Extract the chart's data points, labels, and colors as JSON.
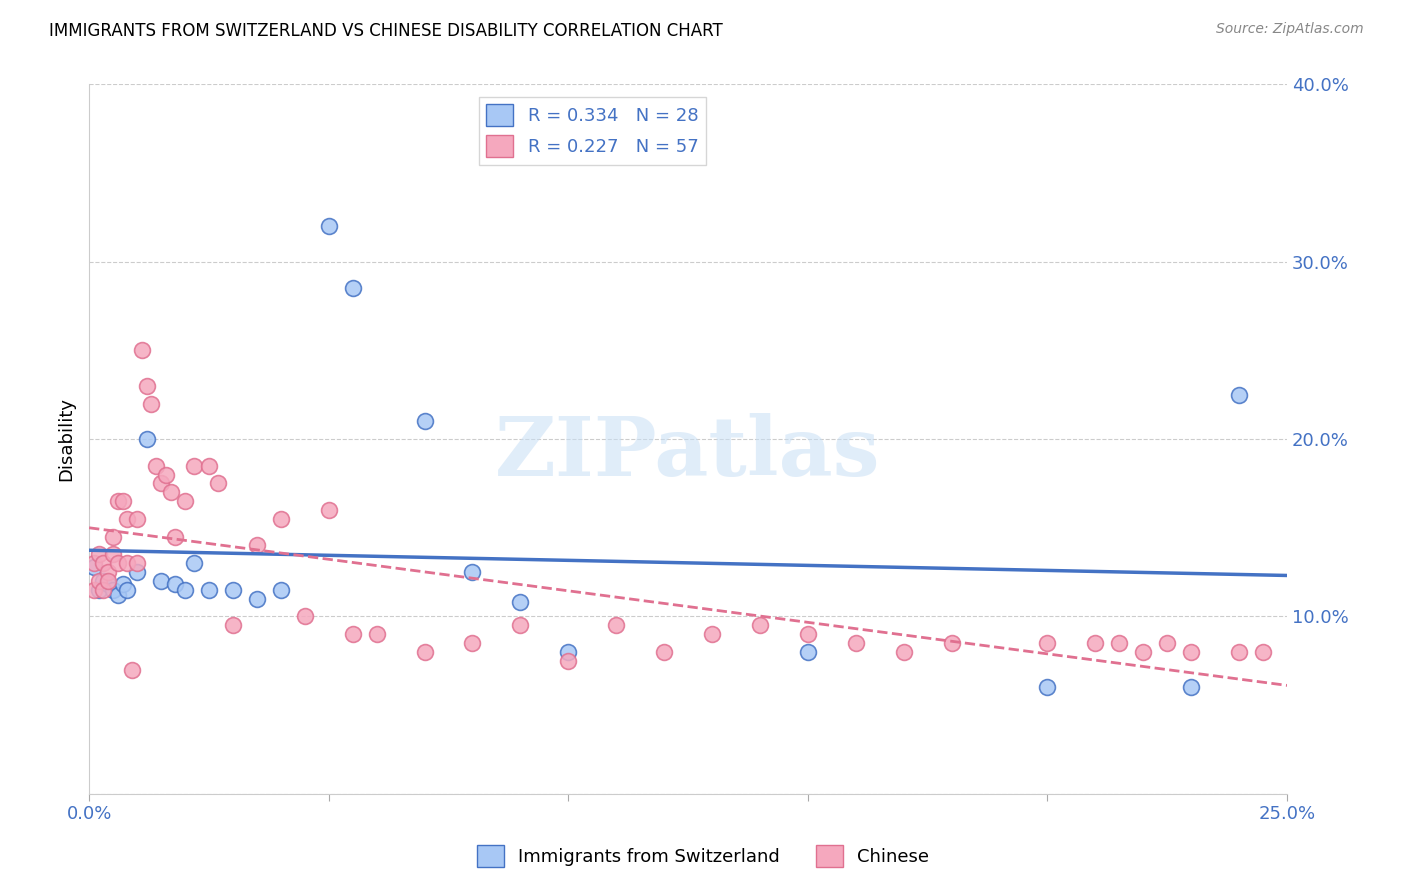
{
  "title": "IMMIGRANTS FROM SWITZERLAND VS CHINESE DISABILITY CORRELATION CHART",
  "source": "Source: ZipAtlas.com",
  "ylabel": "Disability",
  "xlim": [
    0.0,
    0.25
  ],
  "ylim": [
    0.0,
    0.4
  ],
  "legend1_label": "R = 0.334   N = 28",
  "legend2_label": "R = 0.227   N = 57",
  "swiss_color": "#a8c8f5",
  "chinese_color": "#f5a8be",
  "swiss_line_color": "#4472c4",
  "chinese_line_color": "#e07090",
  "watermark": "ZIPatlas",
  "swiss_scatter_x": [
    0.001,
    0.002,
    0.003,
    0.004,
    0.005,
    0.006,
    0.007,
    0.008,
    0.01,
    0.012,
    0.015,
    0.018,
    0.02,
    0.022,
    0.025,
    0.03,
    0.035,
    0.04,
    0.05,
    0.055,
    0.07,
    0.08,
    0.09,
    0.1,
    0.15,
    0.2,
    0.23,
    0.24
  ],
  "swiss_scatter_y": [
    0.128,
    0.115,
    0.12,
    0.118,
    0.115,
    0.112,
    0.118,
    0.115,
    0.125,
    0.2,
    0.12,
    0.118,
    0.115,
    0.13,
    0.115,
    0.115,
    0.11,
    0.115,
    0.32,
    0.285,
    0.21,
    0.125,
    0.108,
    0.08,
    0.08,
    0.06,
    0.06,
    0.225
  ],
  "chinese_scatter_x": [
    0.001,
    0.001,
    0.002,
    0.002,
    0.003,
    0.003,
    0.004,
    0.004,
    0.005,
    0.005,
    0.006,
    0.006,
    0.007,
    0.008,
    0.008,
    0.009,
    0.01,
    0.01,
    0.011,
    0.012,
    0.013,
    0.014,
    0.015,
    0.016,
    0.017,
    0.018,
    0.02,
    0.022,
    0.025,
    0.027,
    0.03,
    0.035,
    0.04,
    0.045,
    0.05,
    0.055,
    0.06,
    0.07,
    0.08,
    0.09,
    0.1,
    0.11,
    0.12,
    0.13,
    0.14,
    0.15,
    0.16,
    0.17,
    0.18,
    0.2,
    0.21,
    0.215,
    0.22,
    0.225,
    0.23,
    0.24,
    0.245
  ],
  "chinese_scatter_y": [
    0.13,
    0.115,
    0.135,
    0.12,
    0.13,
    0.115,
    0.125,
    0.12,
    0.145,
    0.135,
    0.13,
    0.165,
    0.165,
    0.13,
    0.155,
    0.07,
    0.13,
    0.155,
    0.25,
    0.23,
    0.22,
    0.185,
    0.175,
    0.18,
    0.17,
    0.145,
    0.165,
    0.185,
    0.185,
    0.175,
    0.095,
    0.14,
    0.155,
    0.1,
    0.16,
    0.09,
    0.09,
    0.08,
    0.085,
    0.095,
    0.075,
    0.095,
    0.08,
    0.09,
    0.095,
    0.09,
    0.085,
    0.08,
    0.085,
    0.085,
    0.085,
    0.085,
    0.08,
    0.085,
    0.08,
    0.08,
    0.08
  ]
}
